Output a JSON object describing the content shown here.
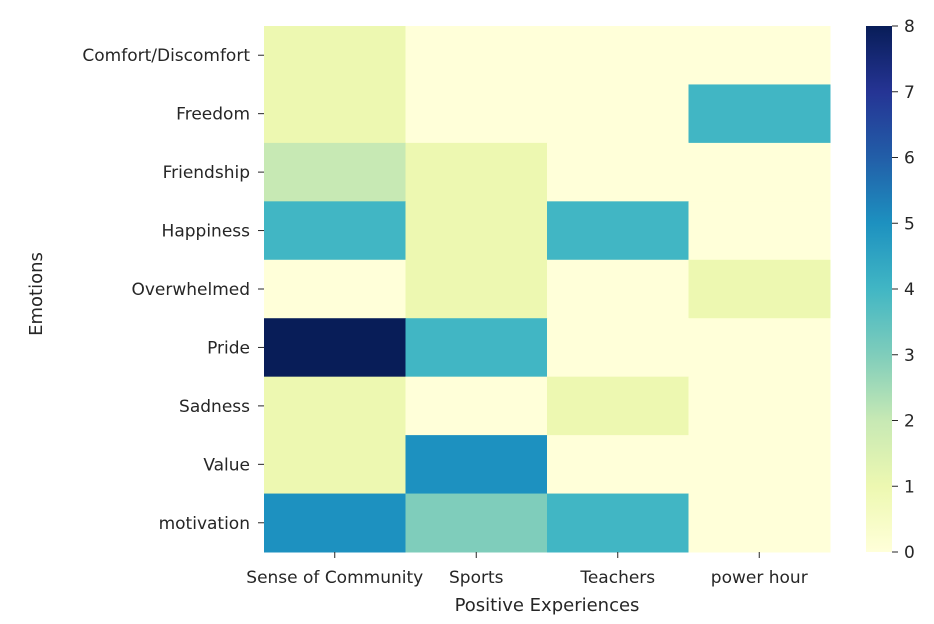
{
  "chart_data": {
    "type": "heatmap",
    "xlabel": "Positive Experiences",
    "ylabel": "Emotions",
    "x_categories": [
      "Sense of Community",
      "Sports",
      "Teachers",
      "power hour"
    ],
    "y_categories": [
      "Comfort/Discomfort",
      "Freedom",
      "Friendship",
      "Happiness",
      "Overwhelmed",
      "Pride",
      "Sadness",
      "Value",
      "motivation"
    ],
    "values": [
      [
        1,
        0,
        0,
        0
      ],
      [
        1,
        0,
        0,
        4
      ],
      [
        2,
        1,
        0,
        0
      ],
      [
        4,
        1,
        4,
        0
      ],
      [
        0,
        1,
        0,
        1
      ],
      [
        8,
        4,
        0,
        0
      ],
      [
        1,
        0,
        1,
        0
      ],
      [
        1,
        5,
        0,
        0
      ],
      [
        5,
        3,
        4,
        0
      ]
    ],
    "colorbar": {
      "min": 0,
      "max": 8,
      "ticks": [
        "0",
        "1",
        "2",
        "3",
        "4",
        "5",
        "6",
        "7",
        "8"
      ],
      "colormap": "YlGnBu"
    }
  }
}
